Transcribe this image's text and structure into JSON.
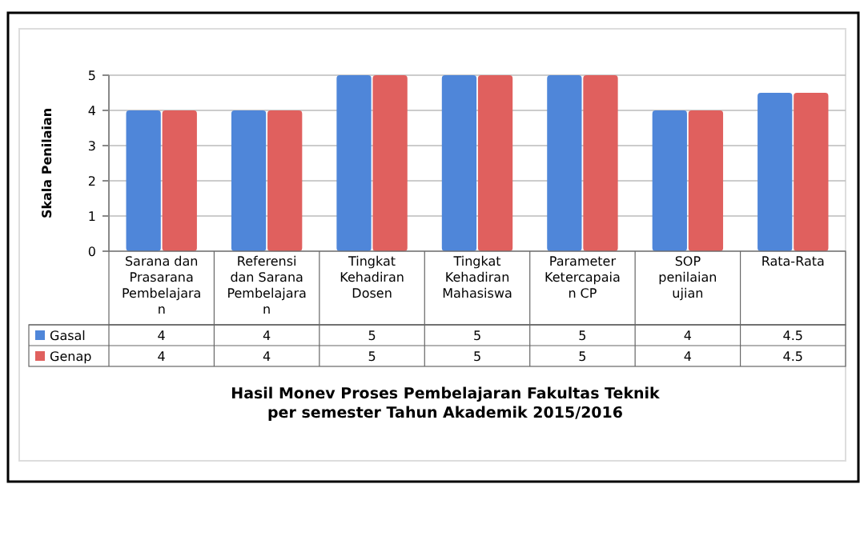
{
  "chart_data": {
    "type": "bar",
    "title": "Hasil Monev Proses Pembelajaran Fakultas Teknik\nper semester Tahun Akademik 2015/2016",
    "ylabel": "Skala Penilaian",
    "categories": [
      "Sarana dan Prasarana Pembelajaran",
      "Referensi dan Sarana Pembelajaran",
      "Tingkat Kehadiran Dosen",
      "Tingkat Kehadiran Mahasiswa",
      "Parameter Ketercapaian CP",
      "SOP penilaian ujian",
      "Rata-Rata"
    ],
    "series": [
      {
        "name": "Gasal",
        "color": "#4f86d9",
        "values": [
          4,
          4,
          5,
          5,
          5,
          4,
          4.5
        ]
      },
      {
        "name": "Genap",
        "color": "#e0605e",
        "values": [
          4,
          4,
          5,
          5,
          5,
          4,
          4.5
        ]
      }
    ],
    "ylim": [
      0,
      5
    ],
    "yticks": [
      0,
      1,
      2,
      3,
      4,
      5
    ],
    "grid": "y",
    "data_labels": true,
    "legend": "bottom left"
  }
}
